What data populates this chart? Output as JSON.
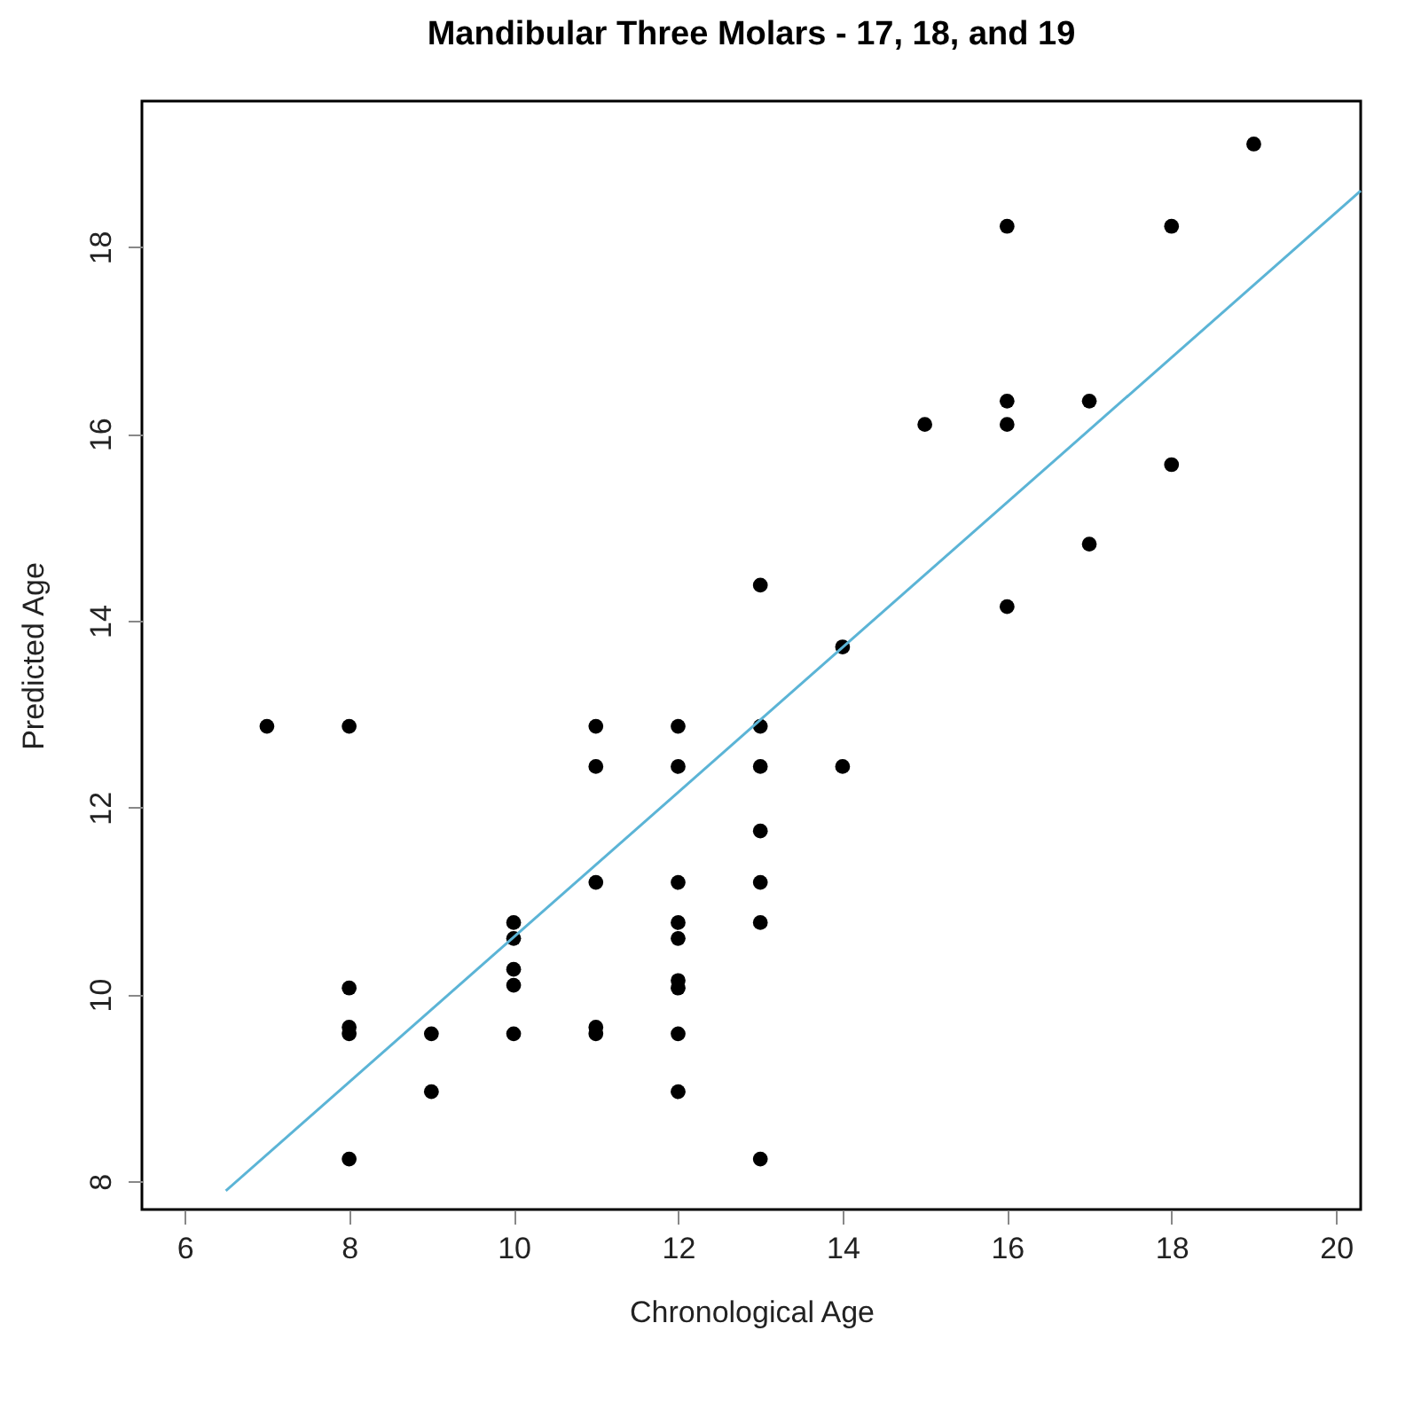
{
  "chart_data": {
    "type": "scatter",
    "title": "Mandibular Three Molars - 17, 18, and 19",
    "xlabel": "Chronological Age",
    "ylabel": "Predicted Age",
    "xlim": [
      5.48,
      20.3
    ],
    "ylim": [
      7.7,
      19.56
    ],
    "xticks": [
      6,
      8,
      10,
      12,
      14,
      16,
      18,
      20
    ],
    "yticks": [
      8,
      10,
      12,
      14,
      16,
      18
    ],
    "grid": false,
    "series": [
      {
        "marker": "circle",
        "color": "#000000",
        "x": [
          7,
          8,
          8,
          8,
          8,
          8,
          9,
          9,
          10,
          10,
          10,
          10,
          10,
          11,
          11,
          11,
          11,
          11,
          12,
          12,
          12,
          12,
          12,
          12,
          12,
          12,
          12,
          13,
          13,
          13,
          13,
          13,
          13,
          13,
          14,
          14,
          15,
          16,
          16,
          16,
          16,
          17,
          17,
          18,
          18,
          19
        ],
        "values": [
          12.87,
          12.87,
          10.07,
          9.65,
          9.58,
          8.24,
          9.58,
          8.96,
          10.77,
          10.6,
          10.27,
          10.1,
          9.58,
          12.87,
          12.44,
          11.2,
          9.65,
          9.58,
          12.87,
          12.44,
          11.2,
          10.77,
          10.6,
          10.15,
          10.07,
          9.58,
          8.96,
          14.38,
          12.87,
          12.44,
          11.75,
          11.2,
          10.77,
          8.24,
          13.72,
          12.44,
          16.1,
          18.22,
          16.35,
          16.1,
          14.15,
          16.35,
          14.82,
          18.22,
          15.67,
          19.1
        ]
      },
      {
        "type": "line",
        "color": "#5bb4d6",
        "x": [
          6.5,
          20.3
        ],
        "values": [
          7.9,
          18.6
        ]
      }
    ]
  }
}
